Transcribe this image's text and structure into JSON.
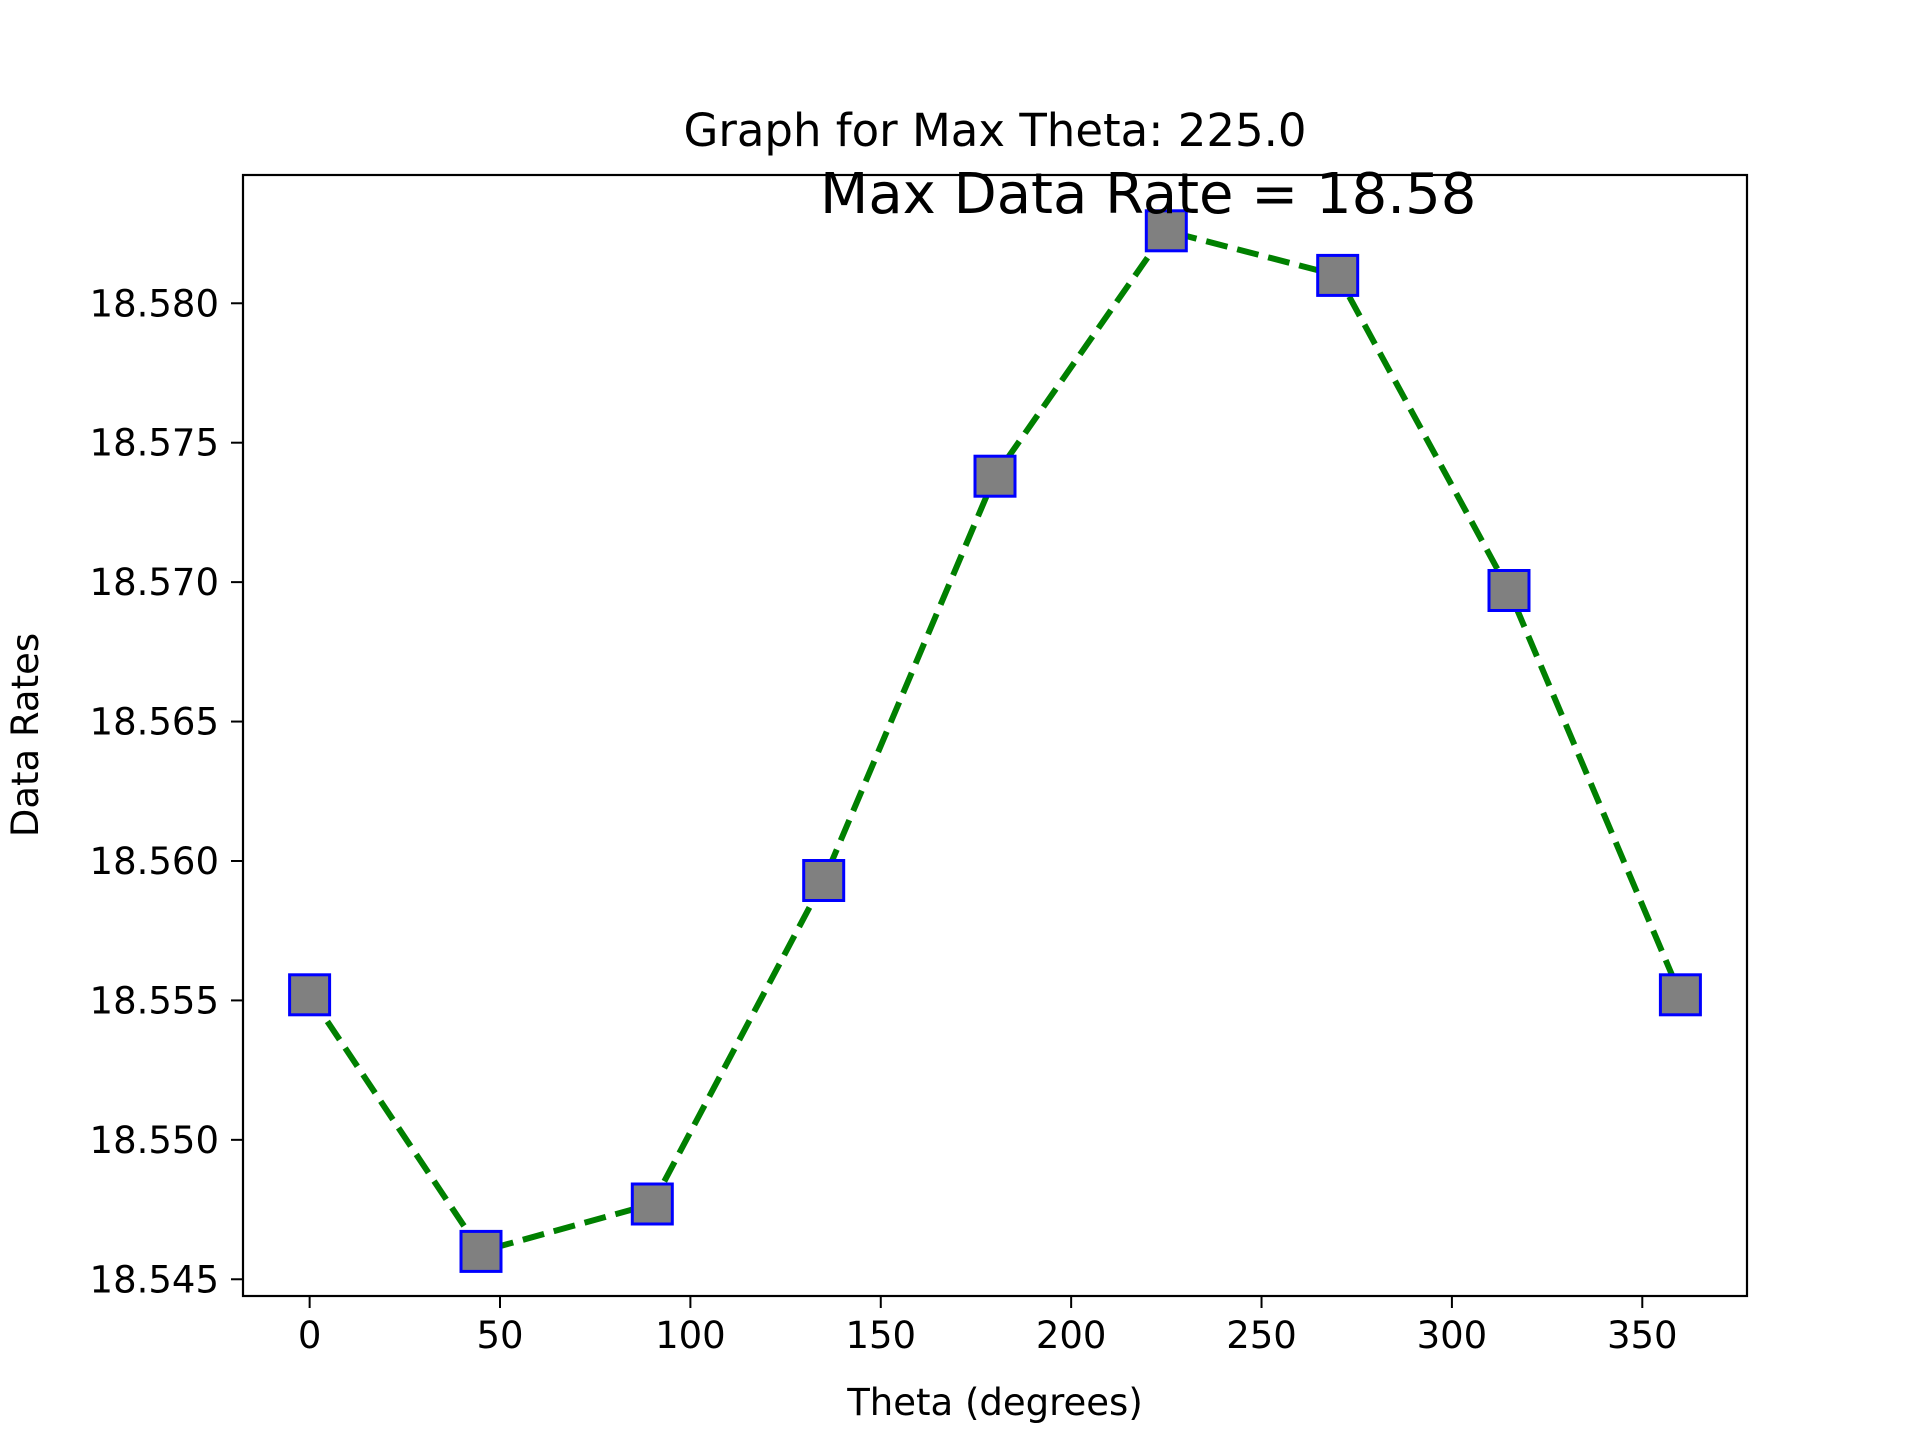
{
  "chart_data": {
    "type": "line",
    "title": "Graph for Max Theta: 225.0",
    "annotation": "Max Data Rate = 18.58",
    "xlabel": "Theta (degrees)",
    "ylabel": "Data Rates",
    "xlim": [
      -17.5,
      377.5
    ],
    "ylim": [
      18.5444,
      18.5846
    ],
    "x_ticks": [
      0,
      50,
      100,
      150,
      200,
      250,
      300,
      350
    ],
    "y_ticks": [
      18.545,
      18.55,
      18.555,
      18.56,
      18.565,
      18.57,
      18.575,
      18.58
    ],
    "x_tick_labels": [
      "0",
      "50",
      "100",
      "150",
      "200",
      "250",
      "300",
      "350"
    ],
    "y_tick_labels": [
      "18.545",
      "18.550",
      "18.555",
      "18.560",
      "18.565",
      "18.570",
      "18.575",
      "18.580"
    ],
    "grid": false,
    "series": [
      {
        "x": [
          0,
          45,
          90,
          135,
          180,
          225,
          270,
          315,
          360
        ],
        "y": [
          18.5552,
          18.546,
          18.5477,
          18.5593,
          18.5738,
          18.5826,
          18.581,
          18.5697,
          18.5552
        ],
        "line_color": "#008000",
        "line_style": "dashed",
        "marker": "square",
        "marker_face_color": "#808080",
        "marker_edge_color": "#0000ff"
      }
    ]
  }
}
